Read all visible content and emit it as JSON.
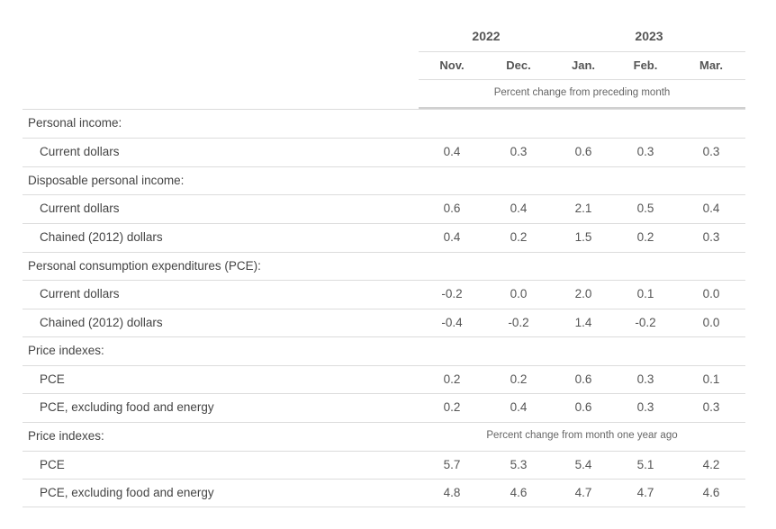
{
  "header": {
    "years": [
      "2022",
      "2023"
    ],
    "months": [
      "Nov.",
      "Dec.",
      "Jan.",
      "Feb.",
      "Mar."
    ],
    "subtitle": "Percent change from preceding month"
  },
  "rows": [
    {
      "label": "Personal income:",
      "kind": "cat",
      "values": []
    },
    {
      "label": "Current dollars",
      "kind": "sub",
      "values": [
        "0.4",
        "0.3",
        "0.6",
        "0.3",
        "0.3"
      ]
    },
    {
      "label": "Disposable personal income:",
      "kind": "cat",
      "values": []
    },
    {
      "label": "Current dollars",
      "kind": "sub",
      "values": [
        "0.6",
        "0.4",
        "2.1",
        "0.5",
        "0.4"
      ]
    },
    {
      "label": "Chained (2012) dollars",
      "kind": "sub",
      "values": [
        "0.4",
        "0.2",
        "1.5",
        "0.2",
        "0.3"
      ]
    },
    {
      "label": "Personal consumption expenditures (PCE):",
      "kind": "cat",
      "values": []
    },
    {
      "label": "Current dollars",
      "kind": "sub",
      "values": [
        "-0.2",
        "0.0",
        "2.0",
        "0.1",
        "0.0"
      ]
    },
    {
      "label": "Chained (2012) dollars",
      "kind": "sub",
      "values": [
        "-0.4",
        "-0.2",
        "1.4",
        "-0.2",
        "0.0"
      ]
    },
    {
      "label": "Price indexes:",
      "kind": "cat",
      "values": []
    },
    {
      "label": "PCE",
      "kind": "sub",
      "values": [
        "0.2",
        "0.2",
        "0.6",
        "0.3",
        "0.1"
      ]
    },
    {
      "label": "PCE, excluding food and energy",
      "kind": "sub",
      "values": [
        "0.2",
        "0.4",
        "0.6",
        "0.3",
        "0.3"
      ]
    },
    {
      "label": "Price indexes:",
      "kind": "cat",
      "values": [],
      "note": "Percent change from month one year ago"
    },
    {
      "label": "PCE",
      "kind": "sub",
      "values": [
        "5.7",
        "5.3",
        "5.4",
        "5.1",
        "4.2"
      ]
    },
    {
      "label": "PCE, excluding food and energy",
      "kind": "sub",
      "values": [
        "4.8",
        "4.6",
        "4.7",
        "4.7",
        "4.6"
      ]
    }
  ]
}
